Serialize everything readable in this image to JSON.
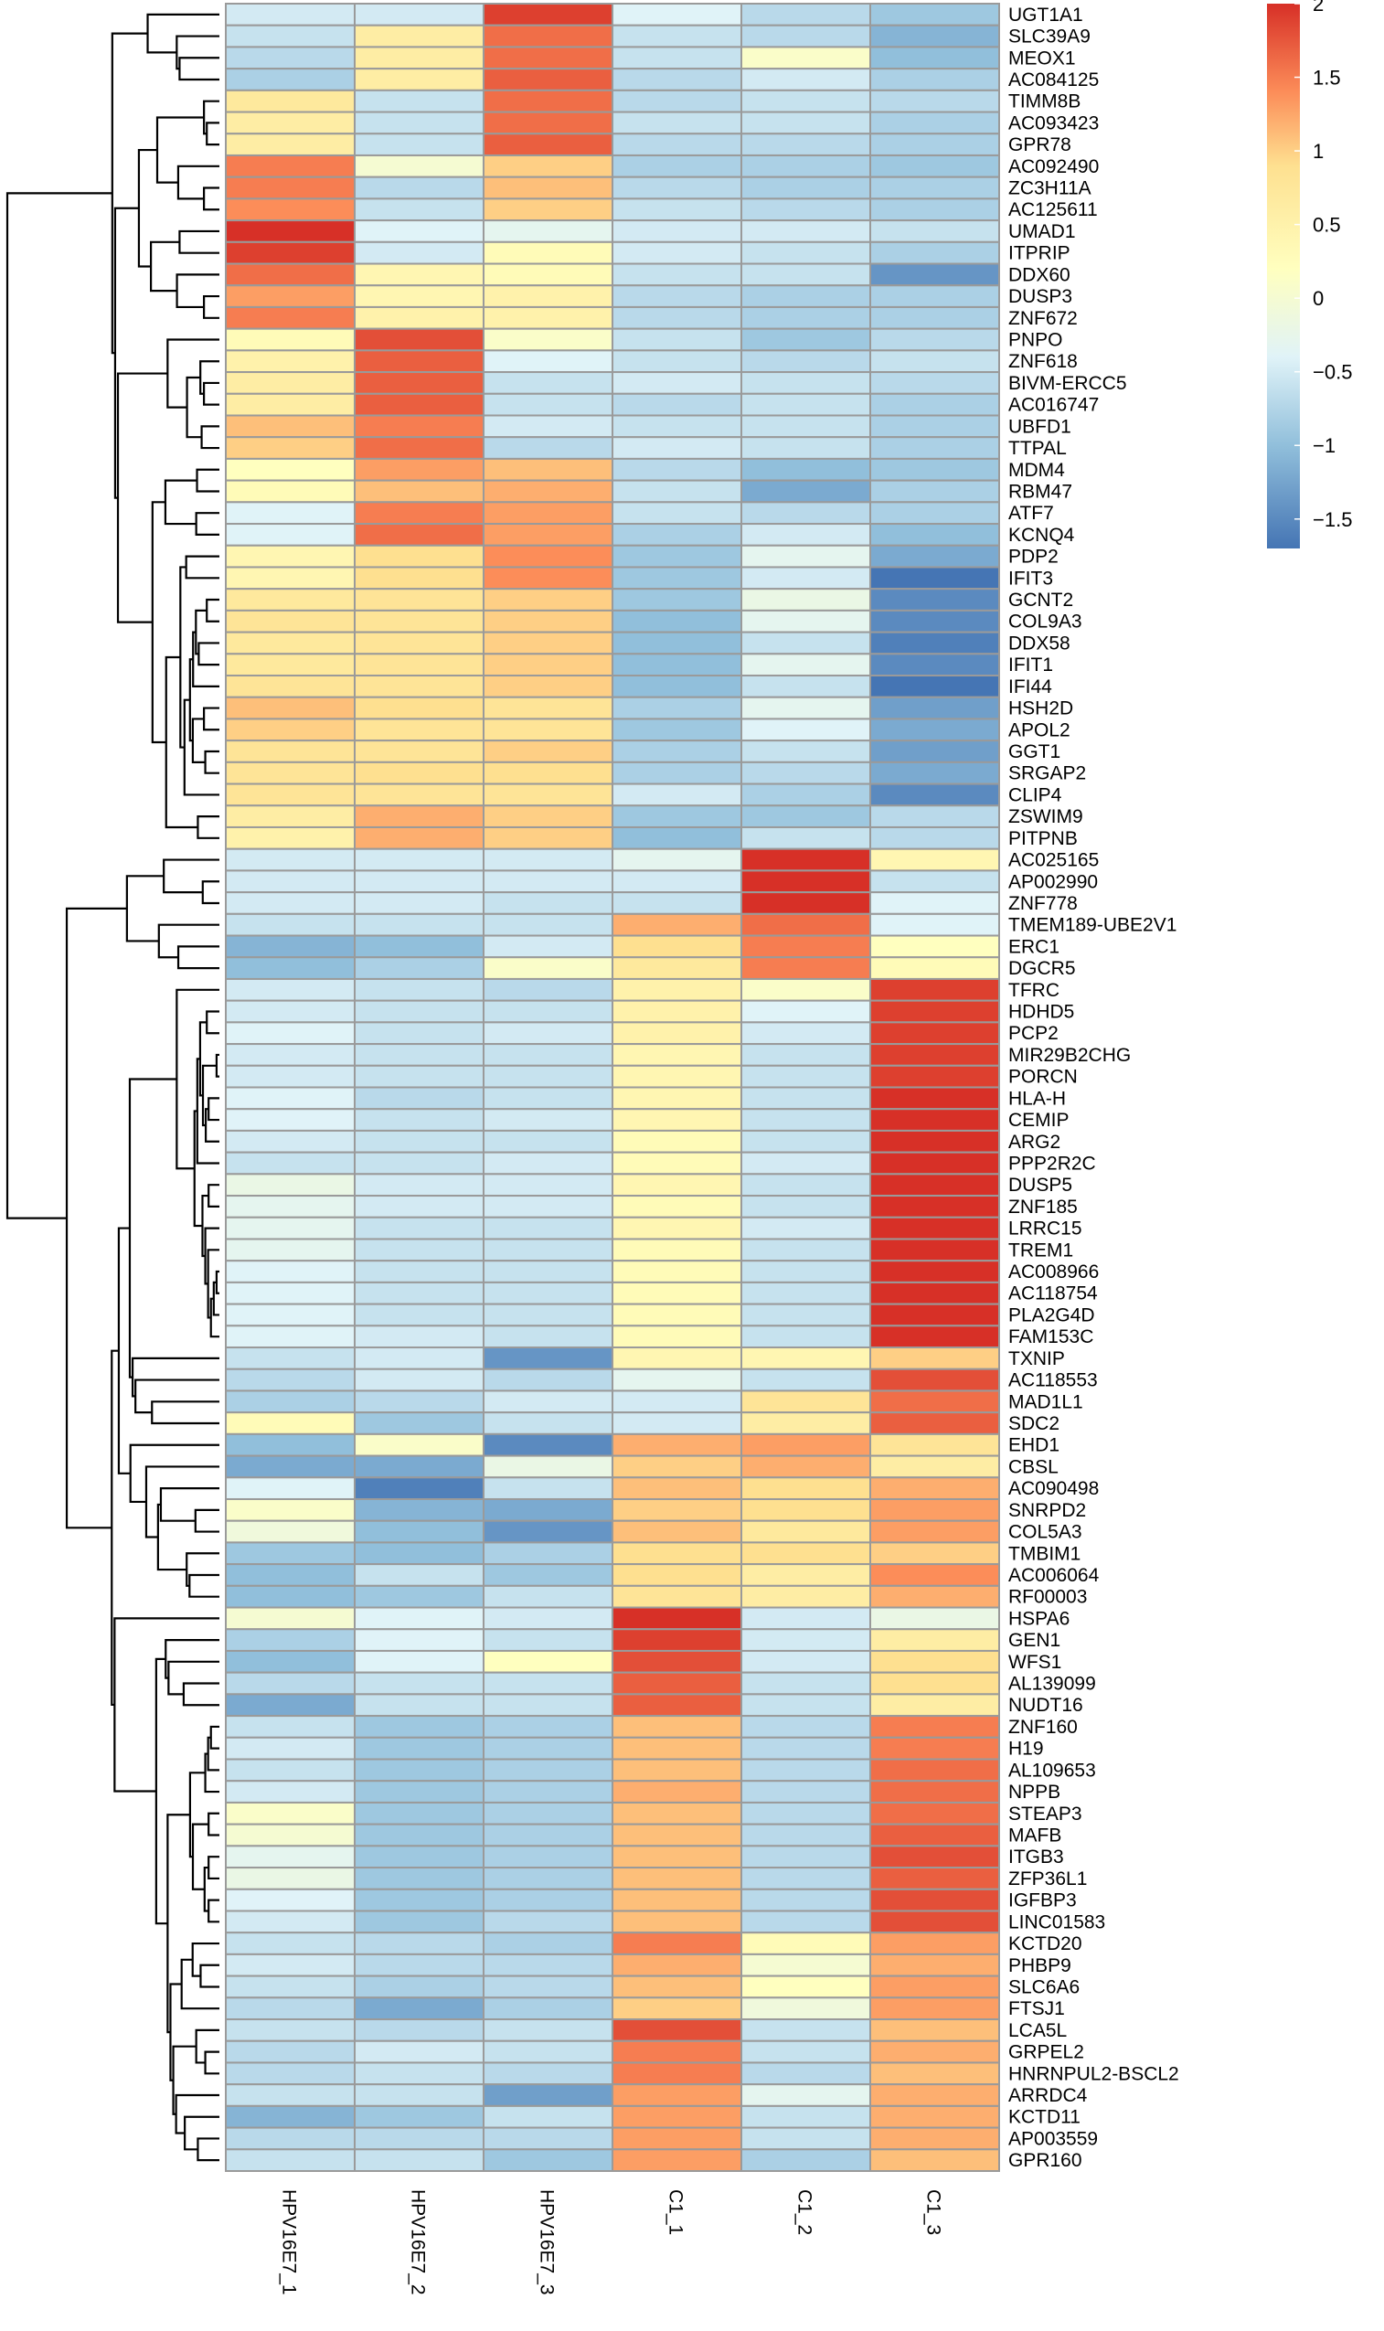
{
  "chart_data": {
    "type": "heatmap",
    "title": "",
    "columns": [
      "HPV16E7_1",
      "HPV16E7_2",
      "HPV16E7_3",
      "C1_1",
      "C1_2",
      "C1_3"
    ],
    "rows": [
      "UGT1A1",
      "SLC39A9",
      "MEOX1",
      "AC084125",
      "TIMM8B",
      "AC093423",
      "GPR78",
      "AC092490",
      "ZC3H11A",
      "AC125611",
      "UMAD1",
      "ITPRIP",
      "DDX60",
      "DUSP3",
      "ZNF672",
      "PNPO",
      "ZNF618",
      "BIVM-ERCC5",
      "AC016747",
      "UBFD1",
      "TTPAL",
      "MDM4",
      "RBM47",
      "ATF7",
      "KCNQ4",
      "PDP2",
      "IFIT3",
      "GCNT2",
      "COL9A3",
      "DDX58",
      "IFIT1",
      "IFI44",
      "HSH2D",
      "APOL2",
      "GGT1",
      "SRGAP2",
      "CLIP4",
      "ZSWIM9",
      "PITPNB",
      "AC025165",
      "AP002990",
      "ZNF778",
      "TMEM189-UBE2V1",
      "ERC1",
      "DGCR5",
      "TFRC",
      "HDHD5",
      "PCP2",
      "MIR29B2CHG",
      "PORCN",
      "HLA-H",
      "CEMIP",
      "ARG2",
      "PPP2R2C",
      "DUSP5",
      "ZNF185",
      "LRRC15",
      "TREM1",
      "AC008966",
      "AC118754",
      "PLA2G4D",
      "FAM153C",
      "TXNIP",
      "AC118553",
      "MAD1L1",
      "SDC2",
      "EHD1",
      "CBSL",
      "AC090498",
      "SNRPD2",
      "COL5A3",
      "TMBIM1",
      "AC006064",
      "RF00003",
      "HSPA6",
      "GEN1",
      "WFS1",
      "AL139099",
      "NUDT16",
      "ZNF160",
      "H19",
      "AL109653",
      "NPPB",
      "STEAP3",
      "MAFB",
      "ITGB3",
      "ZFP36L1",
      "IGFBP3",
      "LINC01583",
      "KCTD20",
      "PHBP9",
      "SLC6A6",
      "FTSJ1",
      "LCA5L",
      "GRPEL2",
      "HNRNPUL2-BSCL2",
      "ARRDC4",
      "KCTD11",
      "AP003559",
      "GPR160"
    ],
    "values": [
      [
        -0.5,
        -0.5,
        1.9,
        -0.4,
        -0.7,
        -0.9
      ],
      [
        -0.6,
        0.6,
        1.6,
        -0.6,
        -0.7,
        -1.1
      ],
      [
        -0.7,
        0.6,
        1.6,
        -0.6,
        0.1,
        -1.0
      ],
      [
        -0.8,
        0.6,
        1.7,
        -0.7,
        -0.5,
        -0.8
      ],
      [
        0.7,
        -0.6,
        1.6,
        -0.7,
        -0.6,
        -0.7
      ],
      [
        0.6,
        -0.6,
        1.6,
        -0.6,
        -0.6,
        -0.8
      ],
      [
        0.6,
        -0.6,
        1.7,
        -0.7,
        -0.7,
        -0.8
      ],
      [
        1.5,
        0.0,
        1.0,
        -0.8,
        -0.8,
        -0.9
      ],
      [
        1.5,
        -0.7,
        1.1,
        -0.7,
        -0.8,
        -0.8
      ],
      [
        1.4,
        -0.6,
        1.0,
        -0.6,
        -0.7,
        -0.8
      ],
      [
        2.0,
        -0.4,
        -0.3,
        -0.5,
        -0.5,
        -0.6
      ],
      [
        1.9,
        -0.5,
        0.3,
        -0.5,
        -0.6,
        -0.8
      ],
      [
        1.6,
        0.4,
        0.3,
        -0.6,
        -0.6,
        -1.4
      ],
      [
        1.3,
        0.4,
        0.5,
        -0.7,
        -0.8,
        -0.8
      ],
      [
        1.5,
        0.5,
        0.5,
        -0.7,
        -0.8,
        -0.8
      ],
      [
        0.3,
        1.8,
        0.1,
        -0.6,
        -0.9,
        -0.7
      ],
      [
        0.5,
        1.7,
        -0.4,
        -0.6,
        -0.7,
        -0.6
      ],
      [
        0.6,
        1.7,
        -0.6,
        -0.5,
        -0.6,
        -0.7
      ],
      [
        0.6,
        1.7,
        -0.6,
        -0.7,
        -0.6,
        -0.8
      ],
      [
        1.1,
        1.5,
        -0.5,
        -0.6,
        -0.6,
        -0.8
      ],
      [
        1.0,
        1.6,
        -0.7,
        -0.5,
        -0.6,
        -0.8
      ],
      [
        0.2,
        1.3,
        1.1,
        -0.7,
        -1.0,
        -0.9
      ],
      [
        0.3,
        1.1,
        1.2,
        -0.6,
        -1.2,
        -0.8
      ],
      [
        -0.4,
        1.5,
        1.3,
        -0.6,
        -0.7,
        -0.8
      ],
      [
        -0.4,
        1.6,
        1.3,
        -0.8,
        -0.5,
        -1.0
      ],
      [
        0.4,
        0.9,
        1.4,
        -0.9,
        -0.3,
        -1.2
      ],
      [
        0.4,
        0.9,
        1.4,
        -0.9,
        -0.5,
        -1.7
      ],
      [
        0.7,
        0.8,
        1.0,
        -0.9,
        -0.2,
        -1.5
      ],
      [
        0.8,
        0.8,
        1.0,
        -1.0,
        -0.3,
        -1.5
      ],
      [
        0.7,
        0.8,
        1.0,
        -1.0,
        -0.6,
        -1.6
      ],
      [
        0.7,
        0.8,
        1.0,
        -1.0,
        -0.3,
        -1.5
      ],
      [
        0.8,
        0.8,
        1.0,
        -1.0,
        -0.6,
        -1.7
      ],
      [
        1.1,
        0.9,
        0.8,
        -0.8,
        -0.3,
        -1.3
      ],
      [
        1.0,
        0.8,
        0.8,
        -0.9,
        -0.4,
        -1.2
      ],
      [
        0.8,
        0.8,
        1.0,
        -0.8,
        -0.6,
        -1.3
      ],
      [
        0.8,
        0.9,
        0.9,
        -0.8,
        -0.7,
        -1.2
      ],
      [
        0.8,
        0.8,
        0.8,
        -0.5,
        -0.8,
        -1.5
      ],
      [
        0.6,
        1.2,
        1.0,
        -0.9,
        -0.9,
        -0.7
      ],
      [
        0.5,
        1.2,
        1.0,
        -1.0,
        -0.6,
        -0.7
      ],
      [
        -0.5,
        -0.5,
        -0.5,
        -0.3,
        2.0,
        0.4
      ],
      [
        -0.5,
        -0.5,
        -0.5,
        -0.5,
        2.0,
        -0.6
      ],
      [
        -0.5,
        -0.5,
        -0.6,
        -0.6,
        2.0,
        -0.4
      ],
      [
        -0.6,
        -0.6,
        -0.6,
        1.2,
        1.6,
        -0.4
      ],
      [
        -1.1,
        -1.0,
        -0.5,
        0.9,
        1.5,
        0.2
      ],
      [
        -1.0,
        -0.8,
        0.1,
        0.7,
        1.5,
        0.3
      ],
      [
        -0.5,
        -0.6,
        -0.7,
        0.5,
        0.1,
        1.9
      ],
      [
        -0.5,
        -0.6,
        -0.6,
        0.5,
        -0.4,
        1.9
      ],
      [
        -0.4,
        -0.6,
        -0.5,
        0.5,
        -0.5,
        1.9
      ],
      [
        -0.5,
        -0.6,
        -0.6,
        0.4,
        -0.6,
        1.9
      ],
      [
        -0.5,
        -0.6,
        -0.6,
        0.4,
        -0.6,
        1.9
      ],
      [
        -0.4,
        -0.7,
        -0.6,
        0.4,
        -0.6,
        2.0
      ],
      [
        -0.4,
        -0.6,
        -0.5,
        0.4,
        -0.6,
        2.0
      ],
      [
        -0.5,
        -0.6,
        -0.6,
        0.3,
        -0.6,
        2.0
      ],
      [
        -0.6,
        -0.6,
        -0.5,
        0.3,
        -0.5,
        2.0
      ],
      [
        -0.2,
        -0.5,
        -0.5,
        0.4,
        -0.6,
        2.0
      ],
      [
        -0.3,
        -0.5,
        -0.5,
        0.3,
        -0.6,
        2.0
      ],
      [
        -0.3,
        -0.6,
        -0.6,
        0.4,
        -0.5,
        2.0
      ],
      [
        -0.3,
        -0.6,
        -0.6,
        0.3,
        -0.6,
        2.0
      ],
      [
        -0.4,
        -0.6,
        -0.6,
        0.3,
        -0.6,
        2.0
      ],
      [
        -0.4,
        -0.6,
        -0.6,
        0.3,
        -0.6,
        2.0
      ],
      [
        -0.4,
        -0.6,
        -0.6,
        0.3,
        -0.6,
        2.0
      ],
      [
        -0.4,
        -0.5,
        -0.6,
        0.3,
        -0.6,
        2.0
      ],
      [
        -0.6,
        -0.5,
        -1.4,
        0.4,
        0.4,
        1.0
      ],
      [
        -0.7,
        -0.5,
        -0.7,
        -0.3,
        -0.6,
        1.8
      ],
      [
        -0.8,
        -0.7,
        -0.5,
        -0.5,
        0.8,
        1.6
      ],
      [
        0.3,
        -0.9,
        -0.6,
        -0.5,
        0.6,
        1.7
      ],
      [
        -1.0,
        0.1,
        -1.5,
        1.2,
        1.3,
        0.8
      ],
      [
        -1.2,
        -1.2,
        -0.2,
        1.0,
        1.2,
        0.6
      ],
      [
        -0.4,
        -1.6,
        -0.6,
        1.1,
        0.9,
        1.2
      ],
      [
        0.1,
        -1.1,
        -1.2,
        1.0,
        0.9,
        1.3
      ],
      [
        -0.1,
        -1.0,
        -1.4,
        1.1,
        0.7,
        1.3
      ],
      [
        -0.9,
        -1.0,
        -0.8,
        0.9,
        0.9,
        1.0
      ],
      [
        -1.0,
        -0.6,
        -0.9,
        0.9,
        0.6,
        1.4
      ],
      [
        -1.0,
        -0.9,
        -0.6,
        0.8,
        0.6,
        1.2
      ],
      [
        0.0,
        -0.4,
        -0.5,
        2.0,
        -0.5,
        -0.2
      ],
      [
        -0.8,
        -0.4,
        -0.6,
        1.9,
        -0.5,
        0.6
      ],
      [
        -1.0,
        -0.4,
        0.2,
        1.8,
        -0.5,
        0.9
      ],
      [
        -0.7,
        -0.6,
        -0.6,
        1.7,
        -0.6,
        0.9
      ],
      [
        -1.2,
        -0.6,
        -0.6,
        1.7,
        -0.6,
        0.6
      ],
      [
        -0.6,
        -0.9,
        -0.8,
        1.1,
        -0.7,
        1.5
      ],
      [
        -0.5,
        -0.9,
        -0.8,
        1.1,
        -0.7,
        1.5
      ],
      [
        -0.6,
        -0.9,
        -0.8,
        1.1,
        -0.7,
        1.6
      ],
      [
        -0.5,
        -0.9,
        -0.8,
        1.2,
        -0.7,
        1.6
      ],
      [
        0.1,
        -0.9,
        -0.8,
        1.1,
        -0.7,
        1.6
      ],
      [
        0.0,
        -0.9,
        -0.8,
        1.1,
        -0.7,
        1.7
      ],
      [
        -0.3,
        -0.9,
        -0.8,
        1.1,
        -0.7,
        1.8
      ],
      [
        -0.2,
        -0.9,
        -0.8,
        1.1,
        -0.7,
        1.7
      ],
      [
        -0.4,
        -0.9,
        -0.8,
        1.1,
        -0.7,
        1.8
      ],
      [
        -0.5,
        -0.9,
        -0.7,
        1.1,
        -0.7,
        1.8
      ],
      [
        -0.6,
        -0.7,
        -0.8,
        1.5,
        0.3,
        1.3
      ],
      [
        -0.5,
        -0.7,
        -0.7,
        1.2,
        0.0,
        1.2
      ],
      [
        -0.6,
        -0.8,
        -0.7,
        1.1,
        0.2,
        1.3
      ],
      [
        -0.7,
        -1.2,
        -0.8,
        1.0,
        -0.1,
        1.3
      ],
      [
        -0.6,
        -0.7,
        -0.6,
        1.8,
        -0.6,
        1.1
      ],
      [
        -0.7,
        -0.5,
        -0.6,
        1.5,
        -0.6,
        1.2
      ],
      [
        -0.7,
        -0.6,
        -0.7,
        1.5,
        -0.7,
        1.1
      ],
      [
        -0.6,
        -0.6,
        -1.3,
        1.3,
        -0.3,
        1.2
      ],
      [
        -1.1,
        -0.9,
        -0.6,
        1.3,
        -0.6,
        1.2
      ],
      [
        -0.7,
        -0.7,
        -0.7,
        1.3,
        -0.6,
        1.2
      ],
      [
        -0.6,
        -0.6,
        -0.9,
        1.3,
        -0.8,
        1.1
      ]
    ],
    "color_scale": {
      "min": -1.7,
      "max": 2.0,
      "stops": [
        {
          "value": -1.7,
          "color": "#4575b4"
        },
        {
          "value": -1.0,
          "color": "#91bfdb"
        },
        {
          "value": -0.4,
          "color": "#e0f3f8"
        },
        {
          "value": 0.2,
          "color": "#ffffbf"
        },
        {
          "value": 0.9,
          "color": "#fee090"
        },
        {
          "value": 1.4,
          "color": "#fc8d59"
        },
        {
          "value": 2.0,
          "color": "#d73027"
        }
      ]
    },
    "legend": {
      "position": "top-right",
      "ticks": [
        {
          "value": 2.0,
          "label": "2"
        },
        {
          "value": 1.5,
          "label": "1.5"
        },
        {
          "value": 1.0,
          "label": "1"
        },
        {
          "value": 0.5,
          "label": "0.5"
        },
        {
          "value": 0.0,
          "label": "0"
        },
        {
          "value": -0.5,
          "label": "−0.5"
        },
        {
          "value": -1.0,
          "label": "−1"
        },
        {
          "value": -1.5,
          "label": "−1.5"
        }
      ]
    },
    "row_dendrogram": true,
    "cell_border_color": "#9a9a9a"
  }
}
